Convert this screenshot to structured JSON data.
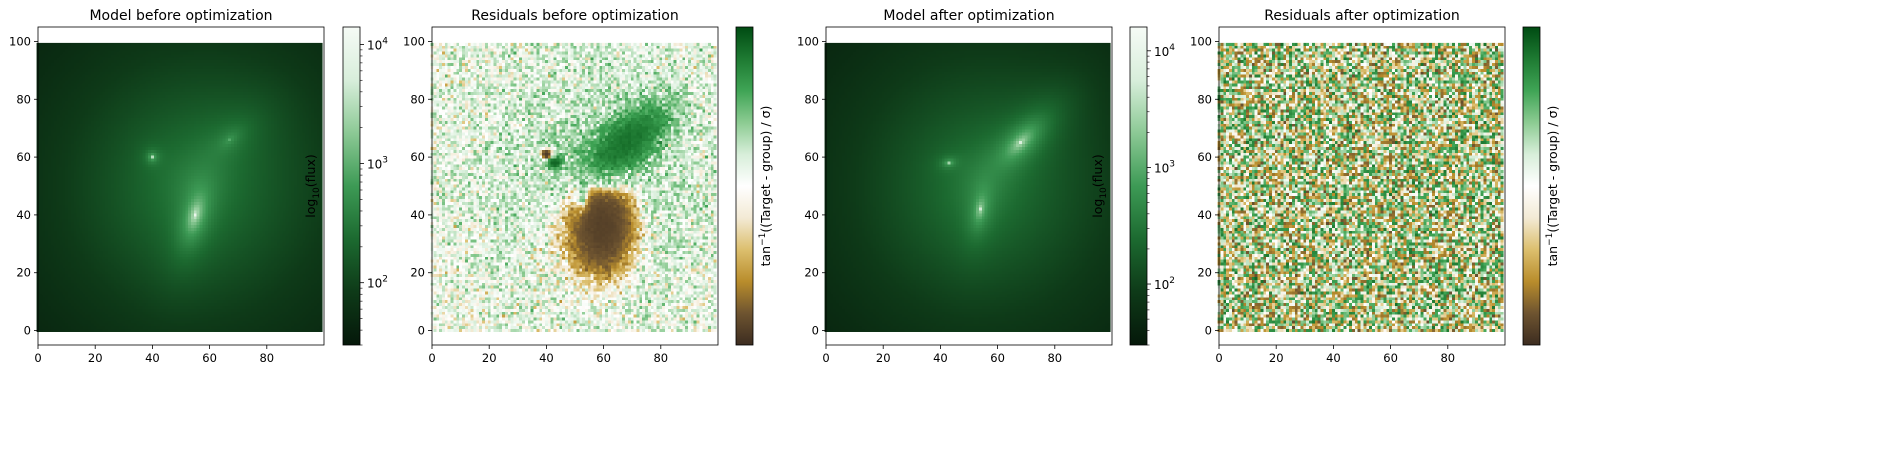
{
  "colors": {
    "green_cmap": [
      "#05180a",
      "#0e3a18",
      "#1c6a30",
      "#3d9a55",
      "#8cc995",
      "#d8eedb",
      "#f6fbf6"
    ],
    "resid_cmap": [
      "#3c2c20",
      "#6e5430",
      "#b98d2c",
      "#dcbf6e",
      "#f3ead5",
      "#ffffff",
      "#d7eed9",
      "#8ccb92",
      "#3fa455",
      "#1e7a32",
      "#004b12"
    ]
  },
  "chart_data": [
    {
      "type": "heatmap",
      "title": "Model before optimization",
      "xlim": [
        0,
        100
      ],
      "ylim": [
        -5,
        105
      ],
      "xticks": [
        "0",
        "20",
        "40",
        "60",
        "80"
      ],
      "yticks": [
        "0",
        "20",
        "40",
        "60",
        "80",
        "100"
      ],
      "image_extent": {
        "x": [
          0,
          99
        ],
        "y": [
          0,
          99
        ]
      },
      "scale": "log",
      "colorbar": {
        "label": "log$_{10}$(flux)",
        "label_text": "log",
        "label_sub": "10",
        "label_rest": "(flux)",
        "range": [
          30,
          14000
        ],
        "ticks": [
          {
            "base": "10",
            "exp": "2",
            "value": 100
          },
          {
            "base": "10",
            "exp": "3",
            "value": 1000
          },
          {
            "base": "10",
            "exp": "4",
            "value": 10000
          }
        ]
      },
      "sources": [
        {
          "x": 55,
          "y": 40,
          "amplitude": 9000,
          "sigma_major": 3.2,
          "sigma_minor": 1.4,
          "angle_deg": 75
        },
        {
          "x": 40,
          "y": 60,
          "amplitude": 3000,
          "sigma_major": 0.9,
          "sigma_minor": 0.9,
          "angle_deg": 0
        },
        {
          "x": 67,
          "y": 66,
          "amplitude": 700,
          "sigma_major": 7,
          "sigma_minor": 4,
          "angle_deg": 40
        }
      ],
      "background": 30
    },
    {
      "type": "heatmap",
      "title": "Residuals before optimization",
      "xlim": [
        0,
        100
      ],
      "ylim": [
        -5,
        105
      ],
      "xticks": [
        "0",
        "20",
        "40",
        "60",
        "80"
      ],
      "yticks": [
        "0",
        "20",
        "40",
        "60",
        "80",
        "100"
      ],
      "image_extent": {
        "x": [
          0,
          99
        ],
        "y": [
          0,
          99
        ]
      },
      "scale": "arctan",
      "colorbar": {
        "label": "tan$^{-1}$((Target - group) / $\\sigma$)",
        "label_text": "tan",
        "label_sup": "−1",
        "label_rest": "((Target - group) / σ)",
        "range": [
          -1.57,
          1.57
        ],
        "ticks": []
      },
      "features": [
        {
          "kind": "negative_lobe",
          "x": 58,
          "y": 35,
          "note": "brown crescent"
        },
        {
          "kind": "positive_blob",
          "x": 68,
          "y": 65,
          "note": "green elongated"
        },
        {
          "kind": "dipole",
          "x": 40,
          "y": 60
        }
      ]
    },
    {
      "type": "heatmap",
      "title": "Model after optimization",
      "xlim": [
        0,
        100
      ],
      "ylim": [
        -5,
        105
      ],
      "xticks": [
        "0",
        "20",
        "40",
        "60",
        "80"
      ],
      "yticks": [
        "0",
        "20",
        "40",
        "60",
        "80",
        "100"
      ],
      "image_extent": {
        "x": [
          0,
          99
        ],
        "y": [
          0,
          99
        ]
      },
      "scale": "log",
      "colorbar": {
        "label": "log$_{10}$(flux)",
        "label_text": "log",
        "label_sub": "10",
        "label_rest": "(flux)",
        "range": [
          30,
          16000
        ],
        "ticks": [
          {
            "base": "10",
            "exp": "2",
            "value": 100
          },
          {
            "base": "10",
            "exp": "3",
            "value": 1000
          },
          {
            "base": "10",
            "exp": "4",
            "value": 10000
          }
        ]
      },
      "sources": [
        {
          "x": 54,
          "y": 42,
          "amplitude": 5000,
          "sigma_major": 3.0,
          "sigma_minor": 1.3,
          "angle_deg": 80
        },
        {
          "x": 43,
          "y": 58,
          "amplitude": 2500,
          "sigma_major": 1.2,
          "sigma_minor": 0.8,
          "angle_deg": 10
        },
        {
          "x": 68,
          "y": 65,
          "amplitude": 6000,
          "sigma_major": 4.2,
          "sigma_minor": 1.9,
          "angle_deg": 45
        }
      ],
      "background": 30
    },
    {
      "type": "heatmap",
      "title": "Residuals after optimization",
      "xlim": [
        0,
        100
      ],
      "ylim": [
        -5,
        105
      ],
      "xticks": [
        "0",
        "20",
        "40",
        "60",
        "80"
      ],
      "yticks": [
        "0",
        "20",
        "40",
        "60",
        "80",
        "100"
      ],
      "image_extent": {
        "x": [
          0,
          99
        ],
        "y": [
          0,
          99
        ]
      },
      "scale": "arctan",
      "colorbar": {
        "label": "tan$^{-1}$((Target - group) / $\\sigma$)",
        "label_text": "tan",
        "label_sup": "−1",
        "label_rest": "((Target - group) / σ)",
        "range": [
          -1.57,
          1.57
        ],
        "ticks": []
      },
      "features": [
        {
          "kind": "noise"
        }
      ]
    }
  ]
}
